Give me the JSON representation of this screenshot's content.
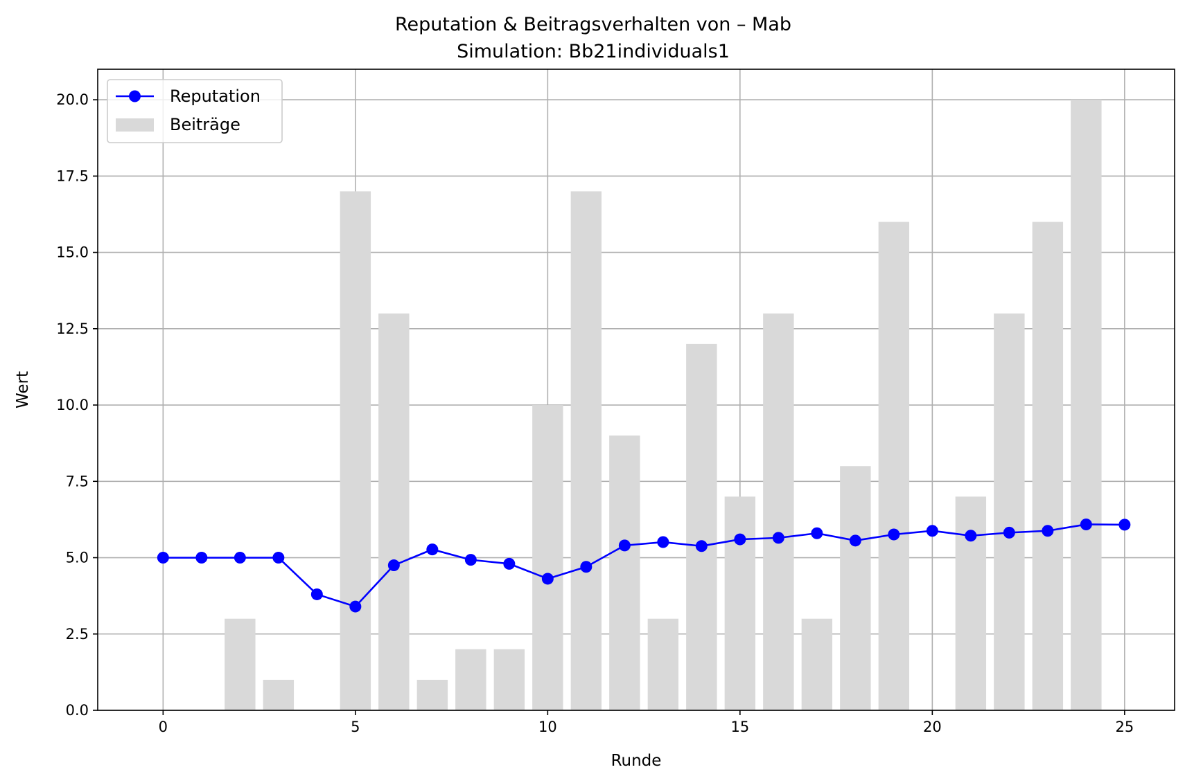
{
  "chart_data": {
    "type": "bar+line",
    "title": "Reputation & Beitragsverhalten von – Mab",
    "subtitle": "Simulation: Bb21individuals1",
    "xlabel": "Runde",
    "ylabel": "Wert",
    "xlim": [
      -1.7,
      26.3
    ],
    "ylim": [
      0,
      21
    ],
    "xticks": [
      0,
      5,
      10,
      15,
      20,
      25
    ],
    "xtick_labels": [
      "0",
      "5",
      "10",
      "15",
      "20",
      "25"
    ],
    "yticks": [
      0,
      2.5,
      5,
      7.5,
      10,
      12.5,
      15,
      17.5,
      20
    ],
    "ytick_labels": [
      "0.0",
      "2.5",
      "5.0",
      "7.5",
      "10.0",
      "12.5",
      "15.0",
      "17.5",
      "20.0"
    ],
    "grid": true,
    "legend_position": "upper-left",
    "x": [
      0,
      1,
      2,
      3,
      4,
      5,
      6,
      7,
      8,
      9,
      10,
      11,
      12,
      13,
      14,
      15,
      16,
      17,
      18,
      19,
      20,
      21,
      22,
      23,
      24,
      25
    ],
    "series": [
      {
        "name": "Reputation",
        "kind": "line",
        "color": "#0000ff",
        "values": [
          5.0,
          5.0,
          5.0,
          5.0,
          3.8,
          3.4,
          4.75,
          5.27,
          4.93,
          4.8,
          4.31,
          4.7,
          5.4,
          5.51,
          5.38,
          5.6,
          5.65,
          5.8,
          5.56,
          5.76,
          5.88,
          5.72,
          5.82,
          5.88,
          6.09,
          6.08
        ]
      },
      {
        "name": "Beiträge",
        "kind": "bar",
        "color": "#d9d9d9",
        "values": [
          0,
          0,
          3,
          1,
          0,
          17,
          13,
          1,
          2,
          2,
          10,
          17,
          9,
          3,
          12,
          7,
          13,
          3,
          8,
          16,
          0,
          7,
          13,
          16,
          20,
          0
        ]
      }
    ]
  }
}
